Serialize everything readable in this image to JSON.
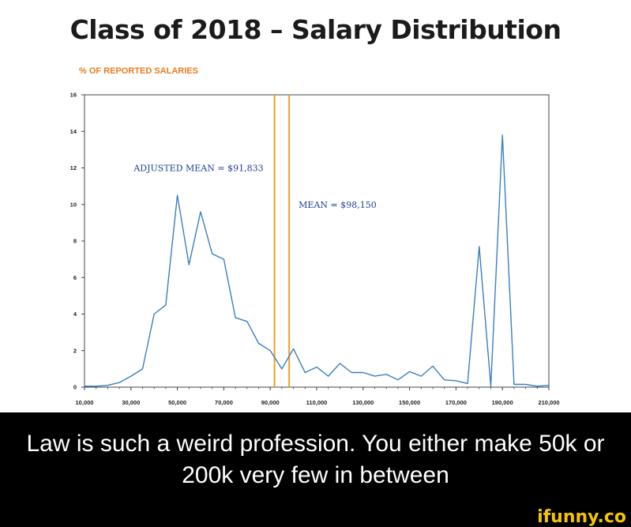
{
  "title": "Class of 2018 – Salary Distribution",
  "caption": "Law is such a weird profession. You either make 50k or 200k very few in between",
  "watermark": "ifunny.co",
  "chart_data": {
    "type": "line",
    "ylabel": "% OF REPORTED SALARIES",
    "xlabel": "",
    "xlim": [
      10000,
      210000
    ],
    "ylim": [
      0,
      16
    ],
    "xticks": [
      "10,000",
      "30,000",
      "50,000",
      "70,000",
      "90,000",
      "110,000",
      "130,000",
      "150,000",
      "170,000",
      "190,000",
      "210,000"
    ],
    "yticks": [
      "0",
      "2",
      "4",
      "6",
      "8",
      "10",
      "12",
      "14",
      "16"
    ],
    "series": [
      {
        "color": "#3a7fc0",
        "x": [
          10000,
          15000,
          20000,
          25000,
          30000,
          35000,
          40000,
          45000,
          50000,
          55000,
          60000,
          65000,
          70000,
          75000,
          80000,
          85000,
          90000,
          95000,
          100000,
          105000,
          110000,
          115000,
          120000,
          125000,
          130000,
          135000,
          140000,
          145000,
          150000,
          155000,
          160000,
          165000,
          170000,
          175000,
          180000,
          185000,
          190000,
          195000,
          200000,
          205000,
          210000
        ],
        "y": [
          0.05,
          0.05,
          0.1,
          0.25,
          0.6,
          1.0,
          4.0,
          4.5,
          10.5,
          6.7,
          9.6,
          7.3,
          7.0,
          3.8,
          3.6,
          2.4,
          2.0,
          1.0,
          2.1,
          0.8,
          1.1,
          0.6,
          1.3,
          0.8,
          0.8,
          0.6,
          0.7,
          0.4,
          0.85,
          0.6,
          1.15,
          0.4,
          0.35,
          0.2,
          7.7,
          0.05,
          13.8,
          0.15,
          0.15,
          0.05,
          0.1
        ]
      }
    ],
    "vlines": [
      {
        "x": 91833,
        "label": "ADJUSTED MEAN = $91,833",
        "color": "#f0a020"
      },
      {
        "x": 98150,
        "label": "MEAN = $98,150",
        "color": "#f0a020"
      }
    ]
  }
}
